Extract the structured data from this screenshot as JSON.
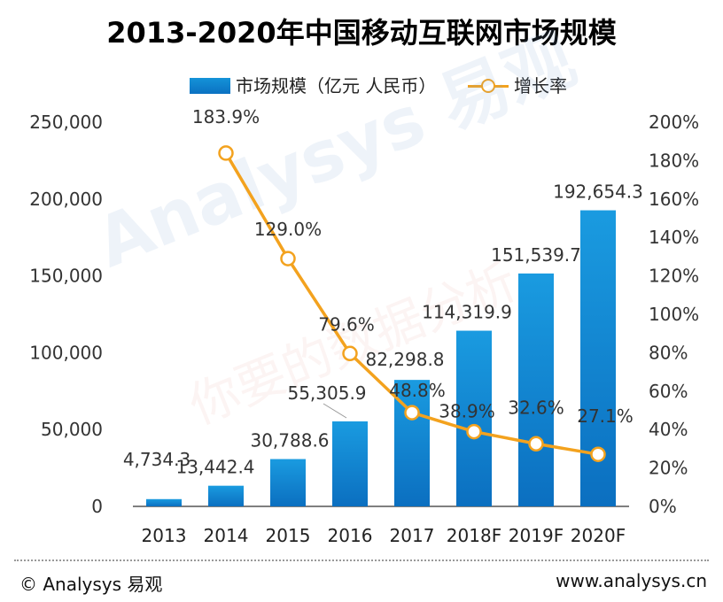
{
  "chart_data": {
    "type": "bar",
    "title": "2013-2020年中国移动互联网市场规模",
    "categories": [
      "2013",
      "2014",
      "2015",
      "2016",
      "2017",
      "2018F",
      "2019F",
      "2020F"
    ],
    "series": [
      {
        "name": "市场规模（亿元 人民币）",
        "type": "bar",
        "axis": "left",
        "values": [
          4734.3,
          13442.4,
          30788.6,
          55305.9,
          82298.8,
          114319.9,
          151539.7,
          192654.3
        ],
        "labels": [
          "4,734.3",
          "13,442.4",
          "30,788.6",
          "55,305.9",
          "82,298.8",
          "114,319.9",
          "151,539.7",
          "192,654.3"
        ]
      },
      {
        "name": "增长率",
        "type": "line",
        "axis": "right",
        "values": [
          null,
          183.9,
          129.0,
          79.6,
          48.8,
          38.9,
          32.6,
          27.1
        ],
        "labels": [
          "",
          "183.9%",
          "129.0%",
          "79.6%",
          "48.8%",
          "38.9%",
          "32.6%",
          "27.1%"
        ]
      }
    ],
    "ylim_left": [
      0,
      250000
    ],
    "yticks_left": [
      "0",
      "50,000",
      "100,000",
      "150,000",
      "200,000",
      "250,000"
    ],
    "ylim_right": [
      0,
      200
    ],
    "yticks_right": [
      "0%",
      "20%",
      "40%",
      "60%",
      "80%",
      "100%",
      "120%",
      "140%",
      "160%",
      "180%",
      "200%"
    ],
    "legend": "top-center",
    "colors": {
      "bar": "#0b7fcc",
      "bar_light": "#1a9be0",
      "line": "#f3a21e"
    }
  },
  "watermark": {
    "main": "Analysys 易观",
    "sub": "你要的数据分析"
  },
  "footer": {
    "left": "© Analysys 易观",
    "right": "www.analysys.cn"
  }
}
